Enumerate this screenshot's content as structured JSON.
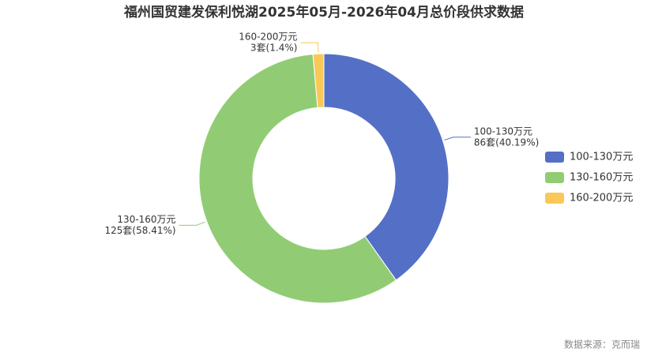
{
  "chart_data": {
    "type": "donut",
    "title": "福州国贸建发保利悦湖2025年05月-2026年04月总价段供求数据",
    "categories": [
      "100-130万元",
      "130-160万元",
      "160-200万元"
    ],
    "values": [
      86,
      125,
      3
    ],
    "value_labels": [
      "86套(40.19%)",
      "125套(58.41%)",
      "3套(1.4%)"
    ],
    "colors": [
      "#5470c6",
      "#91cc75",
      "#fac858"
    ],
    "legend": "right",
    "source": "数据来源：克而瑞"
  }
}
